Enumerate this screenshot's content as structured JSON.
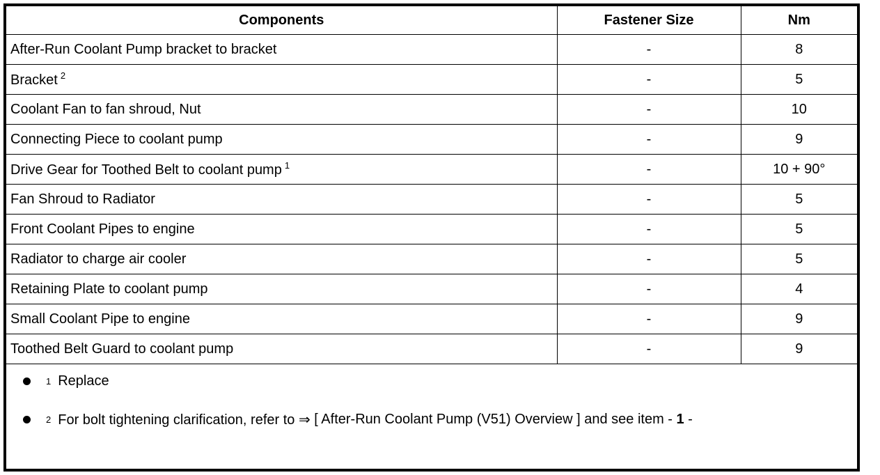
{
  "table": {
    "headers": [
      "Components",
      "Fastener Size",
      "Nm"
    ],
    "rows": [
      {
        "component": "After-Run Coolant Pump bracket to bracket",
        "sup": "",
        "size": "-",
        "nm": "8"
      },
      {
        "component": "Bracket",
        "sup": "2",
        "size": "-",
        "nm": "5"
      },
      {
        "component": "Coolant Fan to fan shroud, Nut",
        "sup": "",
        "size": "-",
        "nm": "10"
      },
      {
        "component": "Connecting Piece to coolant pump",
        "sup": "",
        "size": "-",
        "nm": "9"
      },
      {
        "component": "Drive Gear for Toothed Belt to coolant pump",
        "sup": "1",
        "size": "-",
        "nm": "10 + 90°"
      },
      {
        "component": "Fan Shroud to Radiator",
        "sup": "",
        "size": "-",
        "nm": "5"
      },
      {
        "component": "Front Coolant Pipes to engine",
        "sup": "",
        "size": "-",
        "nm": "5"
      },
      {
        "component": "Radiator to charge air cooler",
        "sup": "",
        "size": "-",
        "nm": "5"
      },
      {
        "component": "Retaining Plate to coolant pump",
        "sup": "",
        "size": "-",
        "nm": "4"
      },
      {
        "component": "Small Coolant Pipe to engine",
        "sup": "",
        "size": "-",
        "nm": "9"
      },
      {
        "component": "Toothed Belt Guard to coolant pump",
        "sup": "",
        "size": "-",
        "nm": "9"
      }
    ]
  },
  "notes": [
    {
      "sup": "1",
      "text": "Replace"
    },
    {
      "sup": "2",
      "text": "For bolt tightening clarification, refer to ⇒ ",
      "link": "[ After-Run Coolant Pump (V51) Overview ]",
      "after": " and see item - ",
      "item": "1",
      "end": " -"
    }
  ]
}
